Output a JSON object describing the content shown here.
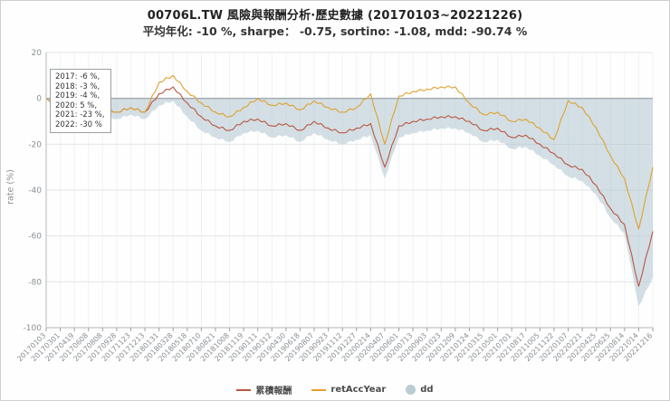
{
  "title": "00706L.TW 風險與報酬分析·歷史數據 (20170103~20221226)",
  "subtitle": "平均年化: -10 %, sharpe： -0.75, sortino: -1.08, mdd: -90.74 %",
  "y_axis_label": "rate (%)",
  "annotation": {
    "lines": [
      "2017: -6 %,",
      "2018: -3 %,",
      "2019: -4 %,",
      "2020: 5 %,",
      "2021: -23 %,",
      "2022: -30 %"
    ]
  },
  "legend": [
    {
      "label": "累積報酬",
      "color": "#b85742",
      "type": "line"
    },
    {
      "label": "retAccYear",
      "color": "#e0a030",
      "type": "line"
    },
    {
      "label": "dd",
      "color": "#b9ccd2",
      "type": "area"
    }
  ],
  "colors": {
    "zero_line": "#93a0a6",
    "grid_h": "#e2e5e7",
    "grid_v": "#f0f1f2",
    "axis": "#b3b8bb",
    "tick_text": "#8a8f94",
    "area_fill": "#aec5cd"
  },
  "chart_data": {
    "type": "line",
    "title": "00706L.TW 風險與報酬分析·歷史數據 (20170103~20221226)",
    "subtitle": "平均年化: -10 %, sharpe： -0.75, sortino: -1.08, mdd: -90.74 %",
    "xlabel": "",
    "ylabel": "rate (%)",
    "ylim": [
      -100,
      20
    ],
    "yticks": [
      20,
      0,
      -20,
      -40,
      -60,
      -80,
      -100
    ],
    "grid": true,
    "legend_position": "bottom",
    "x": [
      "20170103",
      "20170301",
      "20170419",
      "20170608",
      "20170808",
      "20170928",
      "20171123",
      "20171213",
      "20180131",
      "20180328",
      "20180518",
      "20180710",
      "20180821",
      "20181008",
      "20181119",
      "20190111",
      "20190312",
      "20190430",
      "20190618",
      "20190807",
      "20190923",
      "20191112",
      "20191227",
      "20200214",
      "20200407",
      "20200601",
      "20200713",
      "20200903",
      "20201023",
      "20201209",
      "20210124",
      "20210315",
      "20210501",
      "20210701",
      "20210817",
      "20211005",
      "20211122",
      "20220107",
      "20220221",
      "20220425",
      "20220625",
      "20220814",
      "20221014",
      "20221216"
    ],
    "series": [
      {
        "name": "累積報酬",
        "type": "line",
        "color": "#b85742",
        "values": [
          0,
          -3,
          1,
          -2,
          -4,
          -6,
          -4,
          -6,
          2,
          5,
          -2,
          -8,
          -12,
          -14,
          -10,
          -9,
          -12,
          -11,
          -14,
          -10,
          -13,
          -15,
          -13,
          -11,
          -30,
          -12,
          -10,
          -9,
          -8,
          -8,
          -10,
          -14,
          -13,
          -17,
          -16,
          -20,
          -24,
          -29,
          -31,
          -38,
          -48,
          -55,
          -82,
          -58
        ]
      },
      {
        "name": "retAccYear",
        "type": "line",
        "color": "#e0a030",
        "values": [
          0,
          -3,
          1,
          -2,
          -4,
          -6,
          -4,
          -6,
          7,
          10,
          3,
          -2,
          -6,
          -8,
          -4,
          0,
          -3,
          -2,
          -5,
          -1,
          -4,
          -6,
          -4,
          2,
          -20,
          1,
          3,
          4,
          5,
          5,
          -2,
          -7,
          -6,
          -10,
          -9,
          -13,
          -18,
          -1,
          -4,
          -13,
          -25,
          -35,
          -57,
          -30
        ]
      },
      {
        "name": "dd",
        "type": "area",
        "baseline": 0,
        "color": "#aec5cd",
        "values": [
          0,
          -5,
          -2,
          -5,
          -7,
          -9,
          -7,
          -9,
          -3,
          -1,
          -8,
          -14,
          -17,
          -19,
          -15,
          -14,
          -17,
          -16,
          -19,
          -15,
          -18,
          -20,
          -18,
          -16,
          -35,
          -17,
          -15,
          -14,
          -13,
          -13,
          -15,
          -19,
          -18,
          -22,
          -21,
          -25,
          -29,
          -34,
          -36,
          -42,
          -52,
          -59,
          -90.7,
          -78
        ]
      }
    ]
  }
}
